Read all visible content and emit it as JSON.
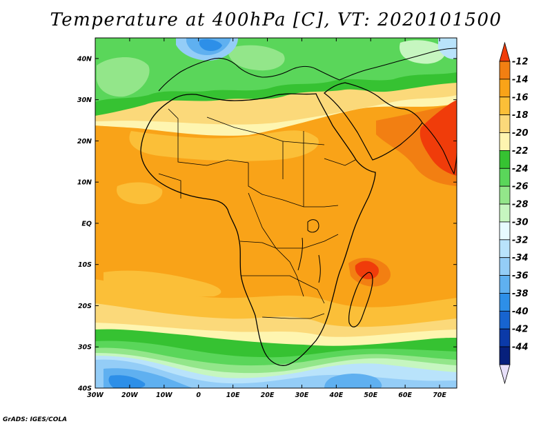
{
  "title": "Temperature at 400hPa [C], VT: 2020101500",
  "credit": "GrADS: IGES/COLA",
  "map": {
    "lon_range": [
      -30,
      75
    ],
    "lat_range": [
      -40,
      45
    ],
    "x_ticks": [
      {
        "lon": -30,
        "label": "30W"
      },
      {
        "lon": -20,
        "label": "20W"
      },
      {
        "lon": -10,
        "label": "10W"
      },
      {
        "lon": 0,
        "label": "0"
      },
      {
        "lon": 10,
        "label": "10E"
      },
      {
        "lon": 20,
        "label": "20E"
      },
      {
        "lon": 30,
        "label": "30E"
      },
      {
        "lon": 40,
        "label": "40E"
      },
      {
        "lon": 50,
        "label": "50E"
      },
      {
        "lon": 60,
        "label": "60E"
      },
      {
        "lon": 70,
        "label": "70E"
      }
    ],
    "y_ticks": [
      {
        "lat": 40,
        "label": "40N"
      },
      {
        "lat": 30,
        "label": "30N"
      },
      {
        "lat": 20,
        "label": "20N"
      },
      {
        "lat": 10,
        "label": "10N"
      },
      {
        "lat": 0,
        "label": "EQ"
      },
      {
        "lat": -10,
        "label": "10S"
      },
      {
        "lat": -20,
        "label": "20S"
      },
      {
        "lat": -30,
        "label": "30S"
      },
      {
        "lat": -40,
        "label": "40S"
      }
    ]
  },
  "colorbar": {
    "labels": [
      "-12",
      "-14",
      "-16",
      "-18",
      "-20",
      "-22",
      "-24",
      "-26",
      "-28",
      "-30",
      "-32",
      "-34",
      "-36",
      "-38",
      "-40",
      "-42",
      "-44"
    ],
    "colors": [
      "#f03c0a",
      "#f27f12",
      "#f9a318",
      "#fbbf38",
      "#fbd97a",
      "#fef5b0",
      "#36c232",
      "#5ad65a",
      "#93e68a",
      "#c6f6c0",
      "#e7fbff",
      "#b9e3fb",
      "#94cdf7",
      "#5fb0f0",
      "#2d8fe8",
      "#1764d0",
      "#0b3aa8",
      "#07207c",
      "#e8e0fa"
    ]
  }
}
